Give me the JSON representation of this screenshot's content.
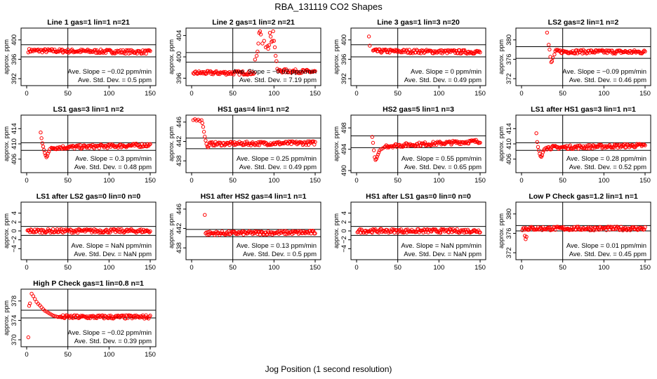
{
  "main_title": "RBA_131119  CO2 Shapes",
  "x_axis_title": "Jog Position (1 second resolution)",
  "colors": {
    "points": "#ff0000",
    "axes": "#000000"
  },
  "chart_data": [
    {
      "type": "scatter",
      "title": "Line 1 gas=1 lin=1 n=21",
      "ylabel": "approx. ppm",
      "xlim": [
        0,
        150
      ],
      "ylim": [
        391,
        402
      ],
      "xticks": [
        0,
        50,
        100,
        150
      ],
      "yticks": [
        392,
        396,
        400
      ],
      "hlines": [
        399,
        396.5
      ],
      "vline": 50,
      "slope_text": "Ave. Slope = −0.02  ppm/min",
      "sd_text": "Ave. Std. Dev. = 0.5  ppm",
      "series": [
        {
          "x": [
            2,
            150
          ],
          "y": [
            397.8,
            397.5
          ]
        }
      ]
    },
    {
      "type": "scatter",
      "title": "Line 2 gas=1 lin=2 n=21",
      "ylabel": "approx. ppm",
      "xlim": [
        0,
        150
      ],
      "ylim": [
        395,
        405
      ],
      "xticks": [
        0,
        50,
        100,
        150
      ],
      "yticks": [
        396,
        400,
        404
      ],
      "hlines": [
        400.8,
        399.0
      ],
      "vline": 50,
      "slope_text": "Ave. Slope = −0.02  ppm/min",
      "sd_text": "Ave. Std. Dev. = 7.19  ppm",
      "series": [
        {
          "x": [
            2,
            76
          ],
          "y": [
            397.0,
            397.0
          ]
        },
        {
          "x": [
            77,
            79,
            80,
            81,
            82,
            83,
            84,
            86,
            88,
            90,
            92,
            93,
            94,
            95,
            96,
            97,
            98,
            99,
            100,
            101,
            102,
            103
          ],
          "y": [
            399.5,
            400.2,
            401,
            402.5,
            404.5,
            404.8,
            404.2,
            402.5,
            403,
            401.8,
            402,
            401.5,
            402.2,
            404.5,
            403.8,
            402.8,
            403,
            404.8,
            403,
            401.8,
            400.2,
            399.2
          ]
        },
        {
          "x": [
            104,
            150
          ],
          "y": [
            397.4,
            397.2
          ]
        }
      ]
    },
    {
      "type": "scatter",
      "title": "Line 3 gas=1 lin=3 n=20",
      "ylabel": "approx. ppm",
      "xlim": [
        0,
        150
      ],
      "ylim": [
        391,
        402
      ],
      "xticks": [
        0,
        50,
        100,
        150
      ],
      "yticks": [
        392,
        396,
        400
      ],
      "hlines": [
        399,
        396.5
      ],
      "vline": 50,
      "slope_text": "Ave. Slope = 0  ppm/min",
      "sd_text": "Ave. Std. Dev. = 0.49  ppm",
      "series": [
        {
          "x": [
            15,
            16
          ],
          "y": [
            400.7,
            398.8
          ]
        },
        {
          "x": [
            20,
            150
          ],
          "y": [
            397.7,
            397.5
          ]
        }
      ]
    },
    {
      "type": "scatter",
      "title": "LS2 gas=2 lin=1 n=2",
      "ylabel": "approx. ppm",
      "xlim": [
        0,
        150
      ],
      "ylim": [
        371,
        382
      ],
      "xticks": [
        0,
        50,
        100,
        150
      ],
      "yticks": [
        372,
        376,
        380
      ],
      "hlines": [
        378.6,
        376.2
      ],
      "vline": 50,
      "slope_text": "Ave. Slope = −0.09  ppm/min",
      "sd_text": "Ave. Std. Dev. = 0.46  ppm",
      "series": [
        {
          "x": [
            31,
            33,
            34,
            35,
            36,
            37,
            38,
            40
          ],
          "y": [
            381.5,
            379.0,
            378.0,
            376.5,
            375.4,
            375.6,
            376.3,
            377.0
          ]
        },
        {
          "x": [
            41,
            150
          ],
          "y": [
            377.6,
            377.5
          ]
        }
      ]
    },
    {
      "type": "scatter",
      "title": "LS1 gas=3 lin=1 n=2",
      "ylabel": "approx. ppm",
      "xlim": [
        0,
        150
      ],
      "ylim": [
        403,
        417
      ],
      "xticks": [
        0,
        50,
        100,
        150
      ],
      "yticks": [
        406,
        410,
        414
      ],
      "hlines": [
        410.3,
        408.3
      ],
      "vline": 50,
      "slope_text": "Ave. Slope = 0.3  ppm/min",
      "sd_text": "Ave. Std. Dev. = 0.48  ppm",
      "series": [
        {
          "x": [
            17,
            18,
            19,
            20,
            21,
            22,
            23,
            24,
            25,
            26,
            27,
            28,
            30
          ],
          "y": [
            413.0,
            411.5,
            410.2,
            409.3,
            408.4,
            407.6,
            407.0,
            406.5,
            406.8,
            407.5,
            408.0,
            408.6,
            409.0
          ]
        },
        {
          "x": [
            31,
            150
          ],
          "y": [
            409.0,
            409.7
          ]
        }
      ]
    },
    {
      "type": "scatter",
      "title": "HS1 gas=4 lin=1 n=2",
      "ylabel": "approx. ppm",
      "xlim": [
        0,
        150
      ],
      "ylim": [
        436,
        447
      ],
      "xticks": [
        0,
        50,
        100,
        150
      ],
      "yticks": [
        438,
        442,
        446
      ],
      "hlines": [
        442.7,
        440.5
      ],
      "vline": 50,
      "slope_text": "Ave. Slope = 0.25  ppm/min",
      "sd_text": "Ave. Std. Dev. = 0.49  ppm",
      "series": [
        {
          "x": [
            2,
            4,
            6,
            8,
            10,
            12,
            13,
            14,
            15,
            16,
            17,
            18,
            19,
            20
          ],
          "y": [
            446.4,
            446.6,
            446.3,
            446.5,
            446.2,
            446.4,
            445.8,
            445.0,
            444.0,
            443.0,
            442.2,
            441.5,
            441.0,
            440.8
          ]
        },
        {
          "x": [
            21,
            150
          ],
          "y": [
            441.5,
            441.7
          ]
        }
      ]
    },
    {
      "type": "scatter",
      "title": "HS2 gas=5 lin=1 n=3",
      "ylabel": "approx. ppm",
      "xlim": [
        0,
        150
      ],
      "ylim": [
        490,
        500
      ],
      "xticks": [
        0,
        50,
        100,
        150
      ],
      "yticks": [
        490,
        494,
        498
      ],
      "hlines": [
        496.5,
        494.3
      ],
      "vline": 50,
      "slope_text": "Ave. Slope = 0.55  ppm/min",
      "sd_text": "Ave. Std. Dev. = 0.65  ppm",
      "series": [
        {
          "x": [
            19,
            20,
            21,
            22,
            23,
            24,
            25,
            26,
            27,
            28,
            30,
            32,
            34
          ],
          "y": [
            496.3,
            495.2,
            493.8,
            492.5,
            492.0,
            492.2,
            492.6,
            493.0,
            493.4,
            493.8,
            494.0,
            494.2,
            494.4
          ]
        },
        {
          "x": [
            35,
            150
          ],
          "y": [
            494.6,
            495.5
          ]
        }
      ]
    },
    {
      "type": "scatter",
      "title": "LS1 after HS1 gas=3 lin=1 n=1",
      "ylabel": "approx. ppm",
      "xlim": [
        0,
        150
      ],
      "ylim": [
        403,
        417
      ],
      "xticks": [
        0,
        50,
        100,
        150
      ],
      "yticks": [
        406,
        410,
        414
      ],
      "hlines": [
        410.3,
        408.3
      ],
      "vline": 50,
      "slope_text": "Ave. Slope = 0.28  ppm/min",
      "sd_text": "Ave. Std. Dev. = 0.52  ppm",
      "series": [
        {
          "x": [
            18,
            19,
            20,
            21,
            22,
            23,
            24,
            25,
            26,
            27,
            28,
            30
          ],
          "y": [
            412.8,
            410.5,
            409.2,
            408.3,
            407.4,
            406.8,
            406.6,
            407.0,
            407.8,
            408.3,
            408.7,
            409.0
          ]
        },
        {
          "x": [
            31,
            150
          ],
          "y": [
            409.0,
            409.6
          ]
        }
      ]
    },
    {
      "type": "scatter",
      "title": "LS1 after LS2 gas=0 lin=0 n=0",
      "ylabel": "approx. ppm",
      "xlim": [
        0,
        150
      ],
      "ylim": [
        -6,
        6
      ],
      "xticks": [
        0,
        50,
        100,
        150
      ],
      "yticks": [
        -4,
        -2,
        0,
        2,
        4
      ],
      "hlines": [
        1,
        -1
      ],
      "vline": 50,
      "slope_text": "Ave. Slope =  NaN  ppm/min",
      "sd_text": "Ave. Std. Dev. =  NaN  ppm",
      "series": [
        {
          "x": [
            1,
            150
          ],
          "y": [
            0,
            0
          ]
        }
      ]
    },
    {
      "type": "scatter",
      "title": "HS1 after HS2 gas=4 lin=1 n=1",
      "ylabel": "approx. ppm",
      "xlim": [
        0,
        150
      ],
      "ylim": [
        436,
        447
      ],
      "xticks": [
        0,
        50,
        100,
        150
      ],
      "yticks": [
        438,
        442,
        446
      ],
      "hlines": [
        441.8,
        440.3
      ],
      "vline": 50,
      "slope_text": "Ave. Slope = 0.13  ppm/min",
      "sd_text": "Ave. Std. Dev. = 0.5  ppm",
      "series": [
        {
          "x": [
            16
          ],
          "y": [
            444.8
          ]
        },
        {
          "x": [
            17,
            150
          ],
          "y": [
            441.0,
            441.2
          ]
        }
      ]
    },
    {
      "type": "scatter",
      "title": "HS1 after LS1 gas=0 lin=0 n=0",
      "ylabel": "approx. ppm",
      "xlim": [
        0,
        150
      ],
      "ylim": [
        -6,
        6
      ],
      "xticks": [
        0,
        50,
        100,
        150
      ],
      "yticks": [
        -4,
        -2,
        0,
        2,
        4
      ],
      "hlines": [
        1,
        -1
      ],
      "vline": 50,
      "slope_text": "Ave. Slope =  NaN  ppm/min",
      "sd_text": "Ave. Std. Dev. =  NaN  ppm",
      "series": [
        {
          "x": [
            1,
            150
          ],
          "y": [
            0,
            0
          ]
        }
      ]
    },
    {
      "type": "scatter",
      "title": "Low P Check gas=1.2 lin=1 n=1",
      "ylabel": "approx. ppm",
      "xlim": [
        0,
        150
      ],
      "ylim": [
        371,
        382
      ],
      "xticks": [
        0,
        50,
        100,
        150
      ],
      "yticks": [
        372,
        376,
        380
      ],
      "hlines": [
        377.6,
        376.5
      ],
      "vline": 50,
      "slope_text": "Ave. Slope = 0.01  ppm/min",
      "sd_text": "Ave. Std. Dev. = 0.45  ppm",
      "series": [
        {
          "x": [
            4,
            5,
            6
          ],
          "y": [
            375.5,
            374.8,
            375.3
          ]
        },
        {
          "x": [
            1,
            150
          ],
          "y": [
            377.0,
            377.0
          ]
        }
      ]
    },
    {
      "type": "scatter",
      "title": "High P Check gas=1 lin=0.8 n=1",
      "ylabel": "approx. ppm",
      "xlim": [
        0,
        150
      ],
      "ylim": [
        369,
        380
      ],
      "xticks": [
        0,
        50,
        100,
        150
      ],
      "yticks": [
        370,
        374,
        378
      ],
      "hlines": [
        376.1,
        374.5
      ],
      "vline": 50,
      "slope_text": "Ave. Slope = −0.02  ppm/min",
      "sd_text": "Ave. Std. Dev. = 0.39  ppm",
      "series": [
        {
          "x": [
            2,
            3,
            4,
            6,
            8,
            10,
            12,
            14,
            16,
            18,
            20,
            22,
            24,
            26,
            28,
            30,
            32,
            34,
            36,
            38,
            40
          ],
          "y": [
            370.5,
            377.0,
            377.5,
            379.5,
            379.0,
            378.4,
            377.8,
            377.4,
            377.1,
            376.7,
            376.3,
            376.0,
            375.8,
            375.6,
            375.4,
            375.2,
            375.0,
            374.9,
            374.8,
            374.7,
            374.7
          ]
        },
        {
          "x": [
            41,
            150
          ],
          "y": [
            374.7,
            374.7
          ]
        }
      ]
    }
  ]
}
